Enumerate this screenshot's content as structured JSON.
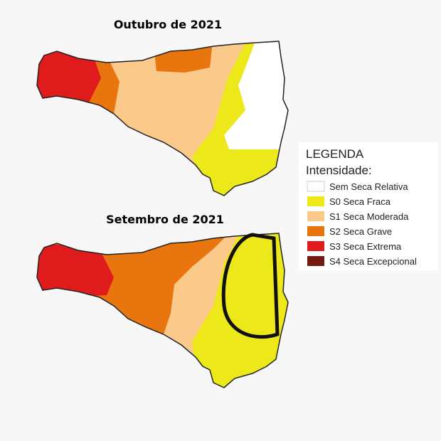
{
  "maps": [
    {
      "title": "Outubro de 2021"
    },
    {
      "title": "Setembro de 2021"
    }
  ],
  "legend": {
    "title": "LEGENDA",
    "subtitle": "Intensidade:",
    "items": [
      {
        "label": "Sem Seca Relativa"
      },
      {
        "label": "S0 Seca Fraca"
      },
      {
        "label": "S1 Seca Moderada"
      },
      {
        "label": "S2 Seca Grave"
      },
      {
        "label": "S3 Seca Extrema"
      },
      {
        "label": "S4 Seca Excepcional"
      }
    ]
  }
}
